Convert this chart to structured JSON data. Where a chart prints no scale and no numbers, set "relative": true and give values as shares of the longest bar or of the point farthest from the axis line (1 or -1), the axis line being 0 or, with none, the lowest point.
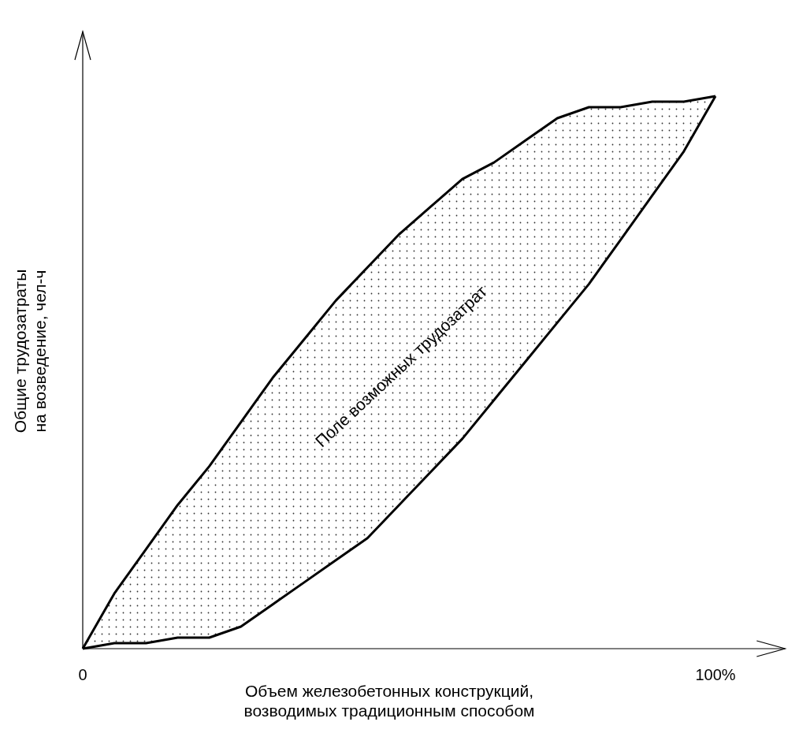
{
  "chart_data": {
    "type": "line",
    "relative": true,
    "xlabel": "Объем железобетонных конструкций,\nвозводимых традиционным способом",
    "ylabel": "Общие трудозатраты\nна возведение, чел-ч",
    "xlim": [
      0,
      111
    ],
    "xticks": [
      0,
      {
        "value": 100,
        "label": "100%"
      }
    ],
    "tick_labels": "x",
    "grid": false,
    "marker": "none",
    "line_style": "solid",
    "x": [
      0,
      5,
      10,
      15,
      20,
      25,
      30,
      35,
      40,
      45,
      50,
      55,
      60,
      65,
      70,
      75,
      80,
      85,
      90,
      95,
      100
    ],
    "series": [
      {
        "color": "#000000",
        "values": [
          0,
          0.1,
          0.18,
          0.26,
          0.33,
          0.41,
          0.49,
          0.56,
          0.63,
          0.69,
          0.75,
          0.8,
          0.85,
          0.88,
          0.92,
          0.96,
          0.98,
          0.98,
          0.99,
          0.99,
          1.0
        ],
        "lower": [
          0,
          0.01,
          0.01,
          0.02,
          0.02,
          0.04,
          0.08,
          0.12,
          0.16,
          0.2,
          0.26,
          0.32,
          0.38,
          0.45,
          0.52,
          0.59,
          0.66,
          0.74,
          0.82,
          0.9,
          1.0
        ],
        "upper": [
          0,
          0.1,
          0.18,
          0.26,
          0.33,
          0.41,
          0.49,
          0.56,
          0.63,
          0.69,
          0.75,
          0.8,
          0.85,
          0.88,
          0.92,
          0.96,
          0.98,
          0.98,
          0.99,
          0.99,
          1.0
        ]
      }
    ],
    "annotations": [
      "Поле возможных трудозатрат"
    ]
  }
}
